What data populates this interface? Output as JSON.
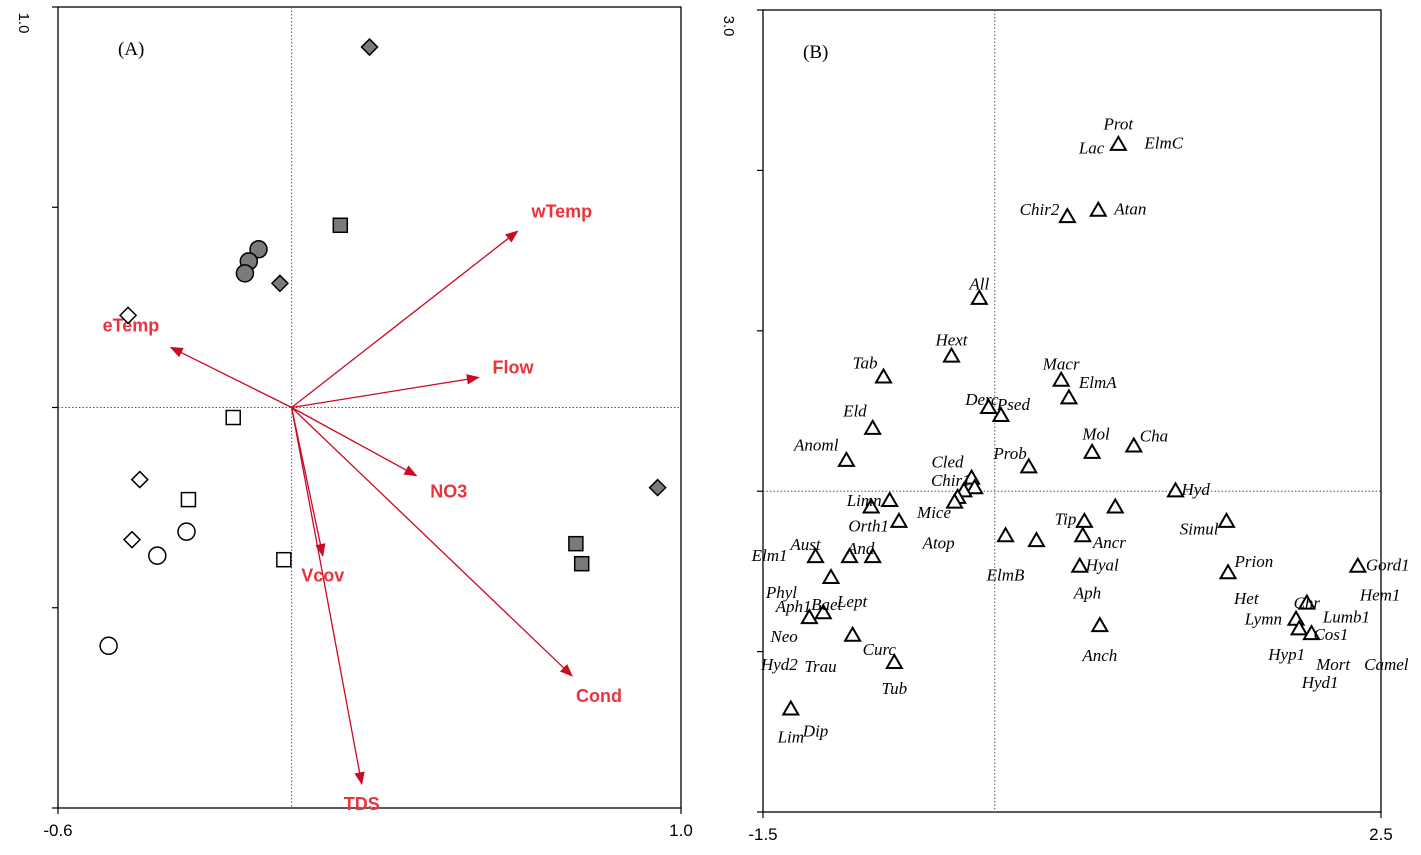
{
  "colors": {
    "arrow": "#cc0a24",
    "arrow_label": "#e8343c",
    "filled_marker": "#7a7a7a",
    "axis": "#000000",
    "gridline": "#555555"
  },
  "chart_data": [
    {
      "type": "scatter",
      "panel_label": "(A)",
      "xlim": [
        -0.6,
        1.0
      ],
      "ylim": [
        -1.0,
        1.0
      ],
      "x_tick_labels": [
        {
          "value": -0.6,
          "text": "-0.6"
        },
        {
          "value": 1.0,
          "text": "1.0"
        }
      ],
      "y_top_tick_label": "1.0",
      "gridlines": {
        "x": 0,
        "y": 0
      },
      "env_vectors": [
        {
          "name": "wTemp",
          "x": 0.58,
          "y": 0.44
        },
        {
          "name": "eTemp",
          "x": -0.31,
          "y": 0.15
        },
        {
          "name": "Flow",
          "x": 0.48,
          "y": 0.075
        },
        {
          "name": "NO3",
          "x": 0.32,
          "y": -0.17
        },
        {
          "name": "Vcov",
          "x": 0.08,
          "y": -0.37
        },
        {
          "name": "TDS",
          "x": 0.18,
          "y": -0.94
        },
        {
          "name": "Cond",
          "x": 0.72,
          "y": -0.67
        }
      ],
      "sites": [
        {
          "shape": "diamond",
          "filled": true,
          "x": 0.2,
          "y": 0.9
        },
        {
          "shape": "diamond",
          "filled": true,
          "x": -0.03,
          "y": 0.31
        },
        {
          "shape": "diamond",
          "filled": true,
          "x": 0.94,
          "y": -0.2
        },
        {
          "shape": "diamond",
          "filled": false,
          "x": -0.42,
          "y": 0.23
        },
        {
          "shape": "diamond",
          "filled": false,
          "x": -0.39,
          "y": -0.18
        },
        {
          "shape": "diamond",
          "filled": false,
          "x": -0.41,
          "y": -0.33
        },
        {
          "shape": "circle",
          "filled": true,
          "x": -0.085,
          "y": 0.395
        },
        {
          "shape": "circle",
          "filled": true,
          "x": -0.11,
          "y": 0.365
        },
        {
          "shape": "circle",
          "filled": true,
          "x": -0.12,
          "y": 0.335
        },
        {
          "shape": "circle",
          "filled": false,
          "x": -0.27,
          "y": -0.31
        },
        {
          "shape": "circle",
          "filled": false,
          "x": -0.345,
          "y": -0.37
        },
        {
          "shape": "circle",
          "filled": false,
          "x": -0.47,
          "y": -0.595
        },
        {
          "shape": "square",
          "filled": true,
          "x": 0.125,
          "y": 0.455
        },
        {
          "shape": "square",
          "filled": true,
          "x": 0.73,
          "y": -0.34
        },
        {
          "shape": "square",
          "filled": true,
          "x": 0.745,
          "y": -0.39
        },
        {
          "shape": "square",
          "filled": false,
          "x": -0.15,
          "y": -0.025
        },
        {
          "shape": "square",
          "filled": false,
          "x": -0.265,
          "y": -0.23
        },
        {
          "shape": "square",
          "filled": false,
          "x": -0.02,
          "y": -0.38
        }
      ]
    },
    {
      "type": "scatter",
      "panel_label": "(B)",
      "xlim": [
        -1.5,
        2.5
      ],
      "ylim": [
        -2.0,
        3.0
      ],
      "x_tick_labels": [
        {
          "value": -1.5,
          "text": "-1.5"
        },
        {
          "value": 2.5,
          "text": "2.5"
        }
      ],
      "y_top_tick_label": "3.0",
      "gridlines": {
        "x": 0,
        "y": 0
      },
      "species": [
        {
          "label": "Prot",
          "x": 0.8,
          "y": 2.16,
          "anchor": "middle",
          "dx": 0,
          "dy": -20
        },
        {
          "label": "ElmC",
          "x": 0.8,
          "y": 2.16,
          "anchor": "start",
          "dx": 26,
          "dy": -1
        },
        {
          "label": "Lac",
          "x": 0.8,
          "y": 2.16,
          "anchor": "end",
          "dx": -14,
          "dy": 4
        },
        {
          "label": "Chir2",
          "x": 0.47,
          "y": 1.71,
          "anchor": "end",
          "dx": -8,
          "dy": -7
        },
        {
          "label": "Atan",
          "x": 0.67,
          "y": 1.75,
          "anchor": "start",
          "dx": 16,
          "dy": -1
        },
        {
          "label": "All",
          "x": -0.1,
          "y": 1.2,
          "anchor": "middle",
          "dx": 0,
          "dy": -14
        },
        {
          "label": "Hext",
          "x": -0.28,
          "y": 0.84,
          "anchor": "middle",
          "dx": 0,
          "dy": -16
        },
        {
          "label": "Tab",
          "x": -0.72,
          "y": 0.71,
          "anchor": "end",
          "dx": -6,
          "dy": -14
        },
        {
          "label": "Macr",
          "x": 0.43,
          "y": 0.69,
          "anchor": "middle",
          "dx": 0,
          "dy": -16
        },
        {
          "label": "ElmA",
          "x": 0.48,
          "y": 0.58,
          "anchor": "start",
          "dx": 10,
          "dy": -15
        },
        {
          "label": "Derc",
          "x": -0.04,
          "y": 0.52,
          "anchor": "end",
          "dx": 10,
          "dy": -8
        },
        {
          "label": "Psed",
          "x": 0.04,
          "y": 0.47,
          "anchor": "start",
          "dx": -4,
          "dy": -11
        },
        {
          "label": "Eld",
          "x": -0.79,
          "y": 0.39,
          "anchor": "end",
          "dx": -6,
          "dy": -17
        },
        {
          "label": "Mol",
          "x": 0.63,
          "y": 0.24,
          "anchor": "middle",
          "dx": 4,
          "dy": -18
        },
        {
          "label": "Cha",
          "x": 0.9,
          "y": 0.28,
          "anchor": "start",
          "dx": 6,
          "dy": -10
        },
        {
          "label": "Anoml",
          "x": -0.96,
          "y": 0.19,
          "anchor": "end",
          "dx": -8,
          "dy": -15
        },
        {
          "label": "Prob",
          "x": 0.22,
          "y": 0.15,
          "anchor": "end",
          "dx": -2,
          "dy": -13
        },
        {
          "label": "Cled",
          "x": -0.15,
          "y": 0.08,
          "anchor": "end",
          "dx": -8,
          "dy": -16
        },
        {
          "label": "Chir1",
          "x": -0.13,
          "y": 0.02,
          "anchor": "end",
          "dx": -4,
          "dy": -7
        },
        {
          "label": "Hyd",
          "x": 1.17,
          "y": 0.0,
          "anchor": "start",
          "dx": 6,
          "dy": -1
        },
        {
          "label": "Limn",
          "x": -0.68,
          "y": -0.06,
          "anchor": "end",
          "dx": -8,
          "dy": 0
        },
        {
          "label": "Mice",
          "x": -0.27,
          "y": -0.06,
          "anchor": "end",
          "dx": -2,
          "dy": 12
        },
        {
          "label": "Tip",
          "x": 0.58,
          "y": -0.19,
          "anchor": "end",
          "dx": -8,
          "dy": -2
        },
        {
          "label": "Simul",
          "x": 1.5,
          "y": -0.19,
          "anchor": "end",
          "dx": -8,
          "dy": 8
        },
        {
          "label": "Orth1",
          "x": -0.62,
          "y": -0.19,
          "anchor": "end",
          "dx": -10,
          "dy": 5
        },
        {
          "label": "Atop",
          "x": -0.48,
          "y": -0.19,
          "anchor": "start",
          "dx": 2,
          "dy": 22
        },
        {
          "label": "Ancr",
          "x": 0.57,
          "y": -0.28,
          "anchor": "start",
          "dx": 10,
          "dy": 7
        },
        {
          "label": "Prion",
          "x": 1.5,
          "y": -0.28,
          "anchor": "start",
          "dx": 8,
          "dy": 26
        },
        {
          "label": "Aust",
          "x": -1.16,
          "y": -0.41,
          "anchor": "middle",
          "dx": -10,
          "dy": -12
        },
        {
          "label": "And",
          "x": -0.79,
          "y": -0.41,
          "anchor": "middle",
          "dx": -12,
          "dy": -8
        },
        {
          "label": "ElmB",
          "x": 0.07,
          "y": -0.35,
          "anchor": "middle",
          "dx": 0,
          "dy": 28
        },
        {
          "label": "Hyal",
          "x": 0.55,
          "y": -0.47,
          "anchor": "start",
          "dx": 6,
          "dy": -1
        },
        {
          "label": "Gord1",
          "x": 2.35,
          "y": -0.47,
          "anchor": "start",
          "dx": 8,
          "dy": -1
        },
        {
          "label": "Hem1",
          "x": 2.35,
          "y": -0.47,
          "anchor": "start",
          "dx": 2,
          "dy": 29
        },
        {
          "label": "Elm1",
          "x": -1.16,
          "y": -0.41,
          "anchor": "end",
          "dx": -28,
          "dy": -1
        },
        {
          "label": "Phyl",
          "x": -1.06,
          "y": -0.54,
          "anchor": "end",
          "dx": -34,
          "dy": 15
        },
        {
          "label": "Het",
          "x": 1.51,
          "y": -0.51,
          "anchor": "start",
          "dx": 6,
          "dy": 26
        },
        {
          "label": "Aph",
          "x": 0.6,
          "y": -0.47,
          "anchor": "middle",
          "dx": 0,
          "dy": 27
        },
        {
          "label": "Lept",
          "x": -1.06,
          "y": -0.54,
          "anchor": "start",
          "dx": 6,
          "dy": 24
        },
        {
          "label": "Baet",
          "x": -1.01,
          "y": -0.76,
          "anchor": "middle",
          "dx": -12,
          "dy": -8
        },
        {
          "label": "Aph1",
          "x": -1.16,
          "y": -0.76,
          "anchor": "end",
          "dx": -4,
          "dy": -6
        },
        {
          "label": "Chr",
          "x": 2.02,
          "y": -0.8,
          "anchor": "middle",
          "dx": 0,
          "dy": -16
        },
        {
          "label": "Lymn",
          "x": 1.95,
          "y": -0.8,
          "anchor": "end",
          "dx": -14,
          "dy": 0
        },
        {
          "label": "Lumb1",
          "x": 2.02,
          "y": -0.8,
          "anchor": "start",
          "dx": 16,
          "dy": -2
        },
        {
          "label": "Cos1",
          "x": 2.05,
          "y": -0.89,
          "anchor": "start",
          "dx": 2,
          "dy": 1
        },
        {
          "label": "Neo",
          "x": -1.21,
          "y": -0.91,
          "anchor": "end",
          "dx": -10,
          "dy": 0
        },
        {
          "label": "Curc",
          "x": -0.92,
          "y": -0.91,
          "anchor": "start",
          "dx": 10,
          "dy": 13
        },
        {
          "label": "Anch",
          "x": 0.68,
          "y": -0.84,
          "anchor": "middle",
          "dx": 0,
          "dy": 30
        },
        {
          "label": "Hyp1",
          "x": 1.97,
          "y": -0.89,
          "anchor": "end",
          "dx": 6,
          "dy": 21
        },
        {
          "label": "Mort",
          "x": 2.08,
          "y": -0.91,
          "anchor": "start",
          "dx": 0,
          "dy": 28
        },
        {
          "label": "Camel",
          "x": 2.08,
          "y": -0.91,
          "anchor": "start",
          "dx": 48,
          "dy": 28
        },
        {
          "label": "Hyd1",
          "x": 2.08,
          "y": -0.91,
          "anchor": "middle",
          "dx": 4,
          "dy": 46
        },
        {
          "label": "Hyd2",
          "x": -1.21,
          "y": -0.91,
          "anchor": "end",
          "dx": -10,
          "dy": 28
        },
        {
          "label": "Trau",
          "x": -0.92,
          "y": -0.91,
          "anchor": "end",
          "dx": -16,
          "dy": 30
        },
        {
          "label": "Tub",
          "x": -0.65,
          "y": -1.07,
          "anchor": "middle",
          "dx": 0,
          "dy": 26
        },
        {
          "label": "Lim",
          "x": -1.32,
          "y": -1.36,
          "anchor": "middle",
          "dx": 0,
          "dy": 28
        },
        {
          "label": "Dip",
          "x": -1.32,
          "y": -1.36,
          "anchor": "start",
          "dx": 12,
          "dy": 22
        }
      ],
      "markers": [
        {
          "x": 0.8,
          "y": 2.16
        },
        {
          "x": 0.47,
          "y": 1.71
        },
        {
          "x": 0.67,
          "y": 1.75
        },
        {
          "x": -0.1,
          "y": 1.2
        },
        {
          "x": -0.28,
          "y": 0.84
        },
        {
          "x": -0.72,
          "y": 0.71
        },
        {
          "x": 0.43,
          "y": 0.69
        },
        {
          "x": 0.48,
          "y": 0.58
        },
        {
          "x": -0.04,
          "y": 0.52
        },
        {
          "x": 0.04,
          "y": 0.47
        },
        {
          "x": -0.79,
          "y": 0.39
        },
        {
          "x": 0.63,
          "y": 0.24
        },
        {
          "x": 0.9,
          "y": 0.28
        },
        {
          "x": -0.96,
          "y": 0.19
        },
        {
          "x": 0.22,
          "y": 0.15
        },
        {
          "x": -0.15,
          "y": 0.08
        },
        {
          "x": -0.13,
          "y": 0.02
        },
        {
          "x": -0.2,
          "y": 0.0
        },
        {
          "x": -0.24,
          "y": -0.04
        },
        {
          "x": -0.26,
          "y": -0.07
        },
        {
          "x": 1.17,
          "y": 0.0
        },
        {
          "x": -0.68,
          "y": -0.06
        },
        {
          "x": -0.8,
          "y": -0.1
        },
        {
          "x": 0.58,
          "y": -0.19
        },
        {
          "x": 0.78,
          "y": -0.1
        },
        {
          "x": 1.5,
          "y": -0.19
        },
        {
          "x": -0.62,
          "y": -0.19
        },
        {
          "x": 0.07,
          "y": -0.28
        },
        {
          "x": 0.27,
          "y": -0.31
        },
        {
          "x": 0.57,
          "y": -0.28
        },
        {
          "x": -1.16,
          "y": -0.41
        },
        {
          "x": -0.94,
          "y": -0.41
        },
        {
          "x": -0.79,
          "y": -0.41
        },
        {
          "x": 0.55,
          "y": -0.47
        },
        {
          "x": 2.35,
          "y": -0.47
        },
        {
          "x": -1.06,
          "y": -0.54
        },
        {
          "x": 1.51,
          "y": -0.51
        },
        {
          "x": 2.02,
          "y": -0.7
        },
        {
          "x": -1.11,
          "y": -0.76
        },
        {
          "x": -1.2,
          "y": -0.79
        },
        {
          "x": 1.95,
          "y": -0.8
        },
        {
          "x": 1.97,
          "y": -0.86
        },
        {
          "x": 2.05,
          "y": -0.89
        },
        {
          "x": -0.92,
          "y": -0.9
        },
        {
          "x": 0.68,
          "y": -0.84
        },
        {
          "x": -0.65,
          "y": -1.07
        },
        {
          "x": -1.32,
          "y": -1.36
        }
      ]
    }
  ]
}
